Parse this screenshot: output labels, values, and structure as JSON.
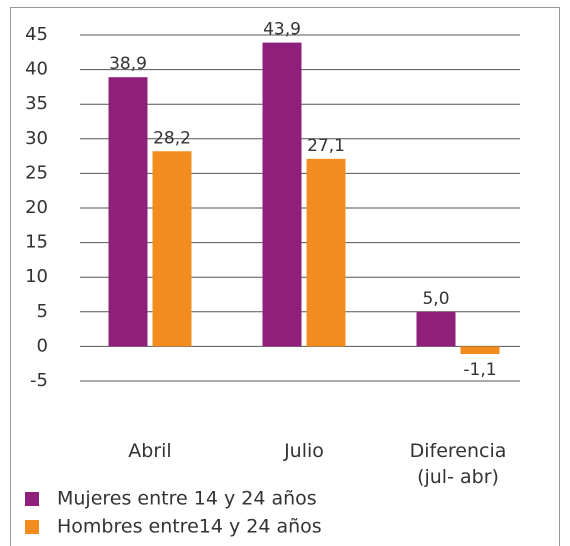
{
  "chart_data": {
    "type": "bar",
    "categories": [
      "Abril",
      "Julio",
      "Diferencia (jul- abr)"
    ],
    "series": [
      {
        "name": "Mujeres entre 14 y 24 años",
        "color": "#8e1f7a",
        "values": [
          38.9,
          43.9,
          5.0
        ],
        "value_labels": [
          "38,9",
          "43,9",
          "5,0"
        ]
      },
      {
        "name": "Hombres entre14 y 24 años",
        "color": "#f28c1e",
        "values": [
          28.2,
          27.1,
          -1.1
        ],
        "value_labels": [
          "28,2",
          "27,1",
          "-1,1"
        ]
      }
    ],
    "ylim": [
      -5,
      45
    ],
    "yticks": [
      -5,
      0,
      5,
      10,
      15,
      20,
      25,
      30,
      35,
      40,
      45
    ],
    "grid": true,
    "legend": "bottom"
  }
}
